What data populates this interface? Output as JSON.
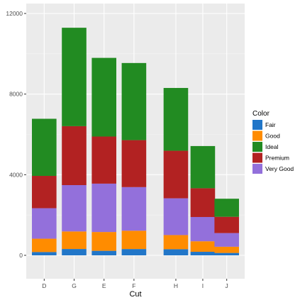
{
  "chart_data": {
    "type": "bar",
    "stacked": true,
    "xlabel": "Cut",
    "ylabel": "",
    "ylim": [
      -1200,
      12000
    ],
    "yticks": [
      0,
      4000,
      8000,
      12000
    ],
    "ytick_labels": [
      "0",
      "4000",
      "8000",
      "12000"
    ],
    "categories": [
      "D",
      "G",
      "E",
      "F",
      "H",
      "I",
      "J"
    ],
    "x": [
      1,
      2,
      3,
      4,
      5.4,
      6.3,
      7.1
    ],
    "bar_width": 0.82,
    "xlim": [
      0.4,
      7.7
    ],
    "grid": true,
    "legend_position": "right",
    "legend_title": "Color",
    "series": [
      {
        "name": "Fair",
        "color": "#2176c8",
        "values": [
          163,
          314,
          224,
          312,
          303,
          175,
          119
        ]
      },
      {
        "name": "Good",
        "color": "#ff8c00",
        "values": [
          662,
          871,
          933,
          909,
          702,
          522,
          307
        ]
      },
      {
        "name": "Ideal",
        "color": "#228b22",
        "values": [
          2834,
          4884,
          3903,
          3826,
          3115,
          2093,
          896
        ]
      },
      {
        "name": "Premium",
        "color": "#b22222",
        "values": [
          1603,
          2924,
          2337,
          2331,
          2360,
          1428,
          808
        ]
      },
      {
        "name": "Very Good",
        "color": "#9370db",
        "values": [
          1513,
          2299,
          2400,
          2164,
          1824,
          1204,
          678
        ]
      }
    ],
    "stack_order_bottom_to_top": [
      "Fair",
      "Good",
      "Very Good",
      "Premium",
      "Ideal"
    ]
  }
}
